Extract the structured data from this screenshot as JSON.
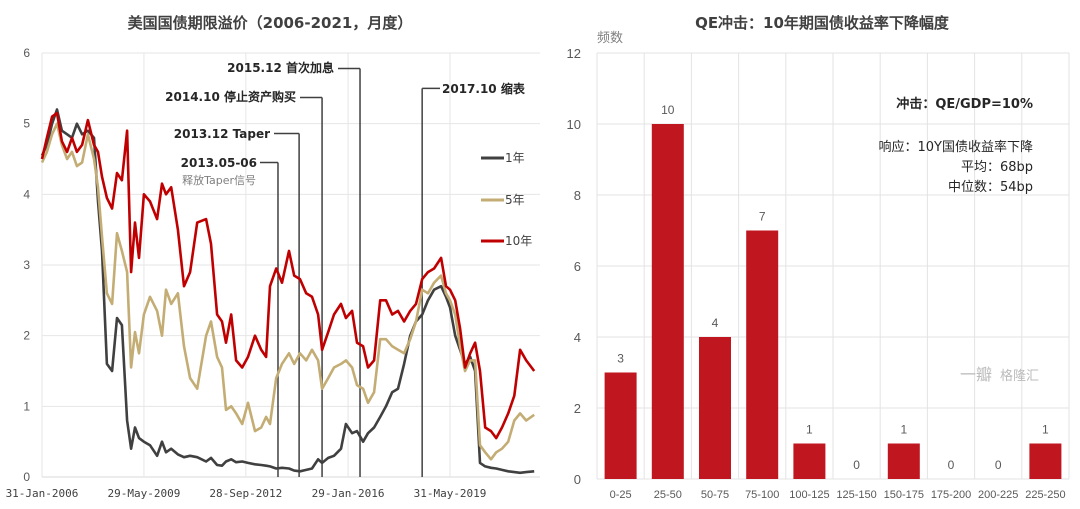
{
  "chart_data": [
    {
      "type": "line",
      "title": "美国国债期限溢价（2006-2021，月度）",
      "xlabel": "",
      "ylabel": "",
      "ylim": [
        0,
        6
      ],
      "yticks": [
        "0",
        "1",
        "2",
        "3",
        "4",
        "5",
        "6"
      ],
      "xlim": [
        2006.08,
        2022.35
      ],
      "xticks": [
        {
          "x": 2006.08,
          "label": "31-Jan-2006"
        },
        {
          "x": 2009.41,
          "label": "29-May-2009"
        },
        {
          "x": 2012.74,
          "label": "28-Sep-2012"
        },
        {
          "x": 2016.08,
          "label": "29-Jan-2016"
        },
        {
          "x": 2019.41,
          "label": "31-May-2019"
        }
      ],
      "grid": true,
      "legend_position": "right",
      "x": [
        2006.08,
        2006.24,
        2006.41,
        2006.57,
        2006.73,
        2006.9,
        2007.06,
        2007.22,
        2007.39,
        2007.58,
        2007.78,
        2007.91,
        2008.04,
        2008.2,
        2008.37,
        2008.53,
        2008.69,
        2008.86,
        2008.99,
        2009.12,
        2009.25,
        2009.41,
        2009.61,
        2009.84,
        2010.0,
        2010.13,
        2010.3,
        2010.52,
        2010.72,
        2010.92,
        2011.15,
        2011.44,
        2011.6,
        2011.8,
        2011.96,
        2012.09,
        2012.26,
        2012.42,
        2012.62,
        2012.81,
        2013.04,
        2013.24,
        2013.4,
        2013.53,
        2013.73,
        2013.92,
        2014.15,
        2014.32,
        2014.51,
        2014.71,
        2014.9,
        2015.1,
        2015.23,
        2015.43,
        2015.62,
        2015.85,
        2016.01,
        2016.21,
        2016.37,
        2016.57,
        2016.73,
        2016.93,
        2017.13,
        2017.32,
        2017.52,
        2017.71,
        2017.91,
        2018.11,
        2018.3,
        2018.5,
        2018.69,
        2018.89,
        2019.12,
        2019.28,
        2019.41,
        2019.58,
        2019.74,
        2019.9,
        2020.07,
        2020.23,
        2020.39,
        2020.56,
        2020.75,
        2020.92,
        2021.11,
        2021.31,
        2021.51,
        2021.7,
        2021.9,
        2022.16
      ],
      "series": [
        {
          "name": "1年",
          "color": "#404040",
          "values": [
            4.55,
            4.7,
            5.0,
            5.2,
            4.9,
            4.85,
            4.8,
            5.0,
            4.85,
            4.9,
            4.8,
            3.9,
            3.2,
            1.6,
            1.5,
            2.25,
            2.15,
            0.8,
            0.4,
            0.7,
            0.55,
            0.5,
            0.45,
            0.3,
            0.5,
            0.35,
            0.4,
            0.32,
            0.28,
            0.3,
            0.28,
            0.22,
            0.27,
            0.17,
            0.16,
            0.22,
            0.25,
            0.21,
            0.22,
            0.2,
            0.18,
            0.17,
            0.16,
            0.15,
            0.12,
            0.13,
            0.12,
            0.09,
            0.08,
            0.1,
            0.12,
            0.25,
            0.2,
            0.27,
            0.3,
            0.4,
            0.75,
            0.62,
            0.65,
            0.5,
            0.62,
            0.7,
            0.85,
            1.0,
            1.2,
            1.25,
            1.6,
            2.0,
            2.2,
            2.3,
            2.5,
            2.65,
            2.7,
            2.55,
            2.4,
            2.0,
            1.8,
            1.6,
            1.7,
            1.5,
            0.2,
            0.15,
            0.13,
            0.12,
            0.1,
            0.08,
            0.07,
            0.06,
            0.07,
            0.08
          ]
        },
        {
          "name": "5年",
          "color": "#c4ad74",
          "values": [
            4.45,
            4.6,
            4.85,
            5.0,
            4.7,
            4.5,
            4.6,
            4.4,
            4.45,
            4.85,
            4.5,
            4.1,
            3.4,
            2.6,
            2.45,
            3.45,
            3.2,
            2.9,
            1.55,
            2.05,
            1.75,
            2.3,
            2.55,
            2.35,
            2.0,
            2.65,
            2.45,
            2.6,
            1.85,
            1.4,
            1.25,
            2.0,
            2.2,
            1.7,
            1.55,
            0.95,
            1.0,
            0.9,
            0.75,
            1.05,
            0.65,
            0.7,
            0.85,
            0.75,
            1.4,
            1.6,
            1.75,
            1.6,
            1.75,
            1.65,
            1.8,
            1.65,
            1.25,
            1.4,
            1.55,
            1.6,
            1.65,
            1.55,
            1.3,
            1.25,
            1.05,
            1.2,
            1.95,
            1.95,
            1.85,
            1.8,
            1.75,
            1.95,
            2.2,
            2.65,
            2.6,
            2.75,
            2.85,
            2.6,
            2.5,
            2.3,
            1.85,
            1.5,
            1.65,
            1.65,
            0.45,
            0.35,
            0.25,
            0.35,
            0.4,
            0.5,
            0.8,
            0.9,
            0.8,
            0.88
          ]
        },
        {
          "name": "10年",
          "color": "#c00000",
          "values": [
            4.5,
            4.8,
            5.1,
            5.15,
            4.75,
            4.6,
            4.8,
            4.6,
            4.7,
            5.05,
            4.7,
            4.6,
            4.25,
            3.95,
            3.8,
            4.3,
            4.2,
            4.9,
            2.9,
            3.6,
            3.1,
            4.0,
            3.9,
            3.65,
            4.15,
            4.0,
            4.1,
            3.5,
            2.7,
            2.9,
            3.6,
            3.65,
            3.3,
            2.3,
            2.2,
            1.9,
            2.3,
            1.65,
            1.55,
            1.7,
            2.0,
            1.8,
            1.7,
            2.7,
            2.95,
            2.75,
            3.2,
            2.85,
            2.8,
            2.6,
            2.55,
            2.3,
            1.8,
            2.05,
            2.3,
            2.45,
            2.25,
            2.35,
            1.9,
            1.85,
            1.55,
            1.65,
            2.5,
            2.5,
            2.3,
            2.35,
            2.2,
            2.35,
            2.45,
            2.8,
            2.9,
            2.95,
            3.1,
            2.7,
            2.65,
            2.5,
            2.1,
            1.55,
            1.75,
            1.9,
            1.5,
            0.7,
            0.65,
            0.55,
            0.7,
            0.9,
            1.15,
            1.8,
            1.65,
            1.5
          ]
        }
      ],
      "annotations": [
        {
          "x": 2013.79,
          "y": 4.45,
          "label": "2013.05-06",
          "sublabel": "释放Taper信号"
        },
        {
          "x": 2014.48,
          "y": 4.86,
          "label": "2013.12 Taper"
        },
        {
          "x": 2015.23,
          "y": 5.37,
          "label": "2014.10 停止资产购买"
        },
        {
          "x": 2016.47,
          "y": 5.78,
          "label": "2015.12 首次加息"
        },
        {
          "x": 2018.5,
          "y": 5.5,
          "label": "2017.10 缩表"
        }
      ]
    },
    {
      "type": "bar",
      "title": "QE冲击：10年期国债收益率下降幅度",
      "ylabel": "频数",
      "xlabel": "",
      "ylim": [
        0,
        12
      ],
      "yticks": [
        "0",
        "2",
        "4",
        "6",
        "8",
        "10",
        "12"
      ],
      "grid": true,
      "categories": [
        "0-25",
        "25-50",
        "50-75",
        "75-100",
        "100-125",
        "125-150",
        "150-175",
        "175-200",
        "200-225",
        "225-250"
      ],
      "values": [
        3,
        10,
        4,
        7,
        1,
        0,
        1,
        0,
        0,
        1
      ],
      "color": "#c0161f",
      "info": {
        "shock": "冲击：QE/GDP=10%",
        "response": "响应：10Y国债收益率下降",
        "mean": "平均：68bp",
        "median": "中位数：54bp"
      }
    }
  ],
  "watermark": {
    "text1": "一瓣",
    "text2": "格隆汇"
  }
}
